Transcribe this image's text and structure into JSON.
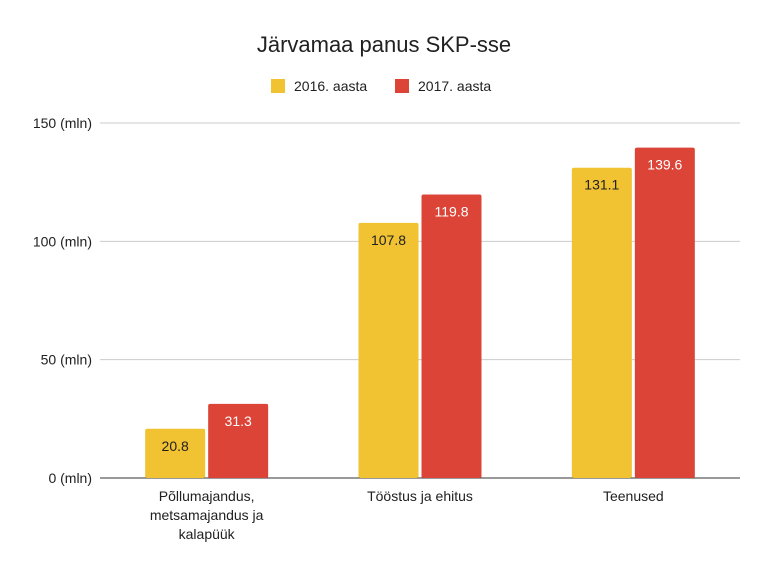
{
  "chart_data": {
    "type": "bar",
    "title": "Järvamaa panus SKP-sse",
    "categories": [
      [
        "Põllumajandus,",
        "metsamajandus ja",
        "kalapüük"
      ],
      [
        "Tööstus ja ehitus"
      ],
      [
        "Teenused"
      ]
    ],
    "series": [
      {
        "name": "2016. aasta",
        "color": "#f1c232",
        "values": [
          20.8,
          107.8,
          131.1
        ],
        "labels": [
          "20.8",
          "107.8",
          "131.1"
        ]
      },
      {
        "name": "2017. aasta",
        "color": "#db4437",
        "values": [
          31.3,
          119.8,
          139.6
        ],
        "labels": [
          "31.3",
          "119.8",
          "139.6"
        ]
      }
    ],
    "ylim": [
      0,
      150
    ],
    "yticks": [
      {
        "value": 0,
        "label": "0 (mln)"
      },
      {
        "value": 50,
        "label": "50 (mln)"
      },
      {
        "value": 100,
        "label": "100 (mln)"
      },
      {
        "value": 150,
        "label": "150 (mln)"
      }
    ],
    "grid": true,
    "legend": "top"
  }
}
